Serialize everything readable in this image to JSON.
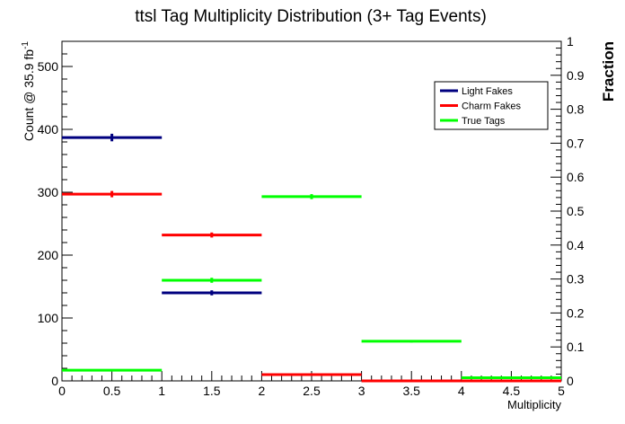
{
  "chart_data": {
    "type": "histogram",
    "title": "ttsl Tag Multiplicity Distribution (3+ Tag Events)",
    "xlabel": "Multiplicity",
    "ylabel": "Count @ 35.9 fb",
    "ylabel_sup": "-1",
    "y2label": "Fraction",
    "xlim": [
      0,
      5
    ],
    "ylim": [
      0,
      540
    ],
    "y2lim": [
      0,
      1
    ],
    "x_ticks": [
      "0",
      "0.5",
      "1",
      "1.5",
      "2",
      "2.5",
      "3",
      "3.5",
      "4",
      "4.5",
      "5"
    ],
    "y_ticks": [
      "0",
      "100",
      "200",
      "300",
      "400",
      "500"
    ],
    "y2_ticks": [
      "0",
      "0.1",
      "0.2",
      "0.3",
      "0.4",
      "0.5",
      "0.6",
      "0.7",
      "0.8",
      "0.9",
      "1"
    ],
    "legend_position": "top-right",
    "bin_edges": [
      0,
      1,
      2,
      3,
      4,
      5
    ],
    "series": [
      {
        "name": "Light Fakes",
        "color": "#00007f",
        "values": [
          387,
          140,
          10,
          0,
          0
        ],
        "errors": [
          6,
          4,
          0,
          0,
          0
        ]
      },
      {
        "name": "Charm Fakes",
        "color": "#ff0000",
        "values": [
          297,
          232,
          10,
          0,
          0
        ],
        "errors": [
          5,
          4,
          0,
          0,
          0
        ]
      },
      {
        "name": "True Tags",
        "color": "#00ff00",
        "values": [
          17,
          160,
          293,
          63,
          5
        ],
        "errors": [
          0,
          4,
          4,
          2,
          0
        ]
      }
    ]
  }
}
